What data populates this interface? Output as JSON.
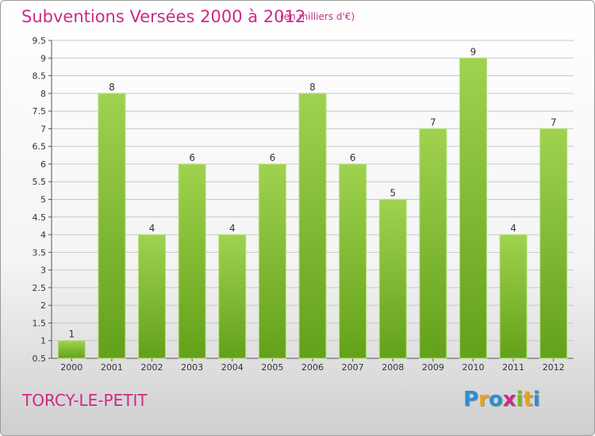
{
  "header": {
    "title": "Subventions Versées 2000 à 2012",
    "unit_note": "(en milliers d'€)"
  },
  "footer": {
    "city": "TORCY-LE-PETIT",
    "brand": "Proxiti",
    "brand_letters": [
      {
        "ch": "P",
        "color": "#2a8fd6"
      },
      {
        "ch": "r",
        "color": "#e8a21a"
      },
      {
        "ch": "o",
        "color": "#2a8fd6"
      },
      {
        "ch": "x",
        "color": "#cc2a86"
      },
      {
        "ch": "i",
        "color": "#7ab52a"
      },
      {
        "ch": "t",
        "color": "#e8a21a"
      },
      {
        "ch": "i",
        "color": "#2a8fd6"
      }
    ]
  },
  "colors": {
    "title": "#cc2a86",
    "bar_light": "#9fd24f",
    "bar_dark": "#63a11a",
    "grid": "#c8c8c8"
  },
  "chart_data": {
    "type": "bar",
    "title": "Subventions Versées 2000 à 2012",
    "subtitle": "(en milliers d'€)",
    "categories": [
      "2000",
      "2001",
      "2002",
      "2003",
      "2004",
      "2005",
      "2006",
      "2007",
      "2008",
      "2009",
      "2010",
      "2011",
      "2012"
    ],
    "values": [
      1,
      8,
      4,
      6,
      4,
      6,
      8,
      6,
      5,
      7,
      9,
      4,
      7
    ],
    "data_labels": [
      "1",
      "8",
      "4",
      "6",
      "4",
      "6",
      "8",
      "6",
      "5",
      "7",
      "9",
      "4",
      "7"
    ],
    "ylim": [
      0.5,
      9.5
    ],
    "yticks": [
      "0.5",
      "1",
      "1.5",
      "2",
      "2.5",
      "3",
      "3.5",
      "4",
      "4.5",
      "5",
      "5.5",
      "6",
      "6.5",
      "7",
      "7.5",
      "8",
      "8.5",
      "9",
      "9.5"
    ],
    "grid": true,
    "xlabel": "",
    "ylabel": ""
  }
}
